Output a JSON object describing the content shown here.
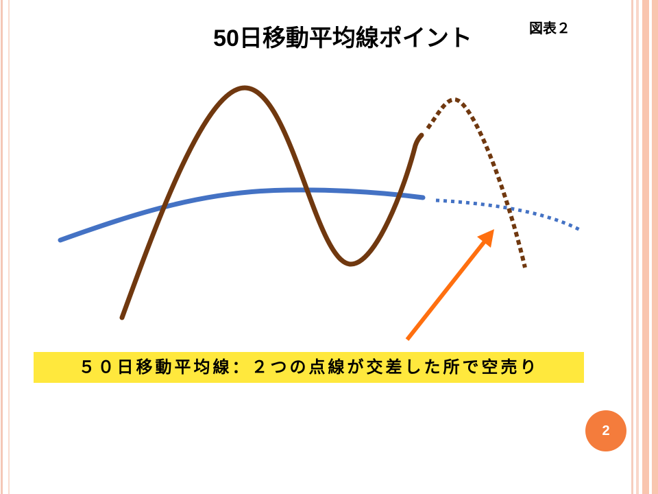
{
  "slide": {
    "title": "50日移動平均線ポイント",
    "figure_label": "図表２",
    "caption": "５０日移動平均線：２つの点線が交差した所で空売り",
    "page_number": "2"
  },
  "colors": {
    "price_line": "#70380F",
    "moving_average_line": "#4472C4",
    "arrow": "#FF6F0F",
    "caption_background": "#FFE83D",
    "page_badge": "#F47C3C"
  }
}
